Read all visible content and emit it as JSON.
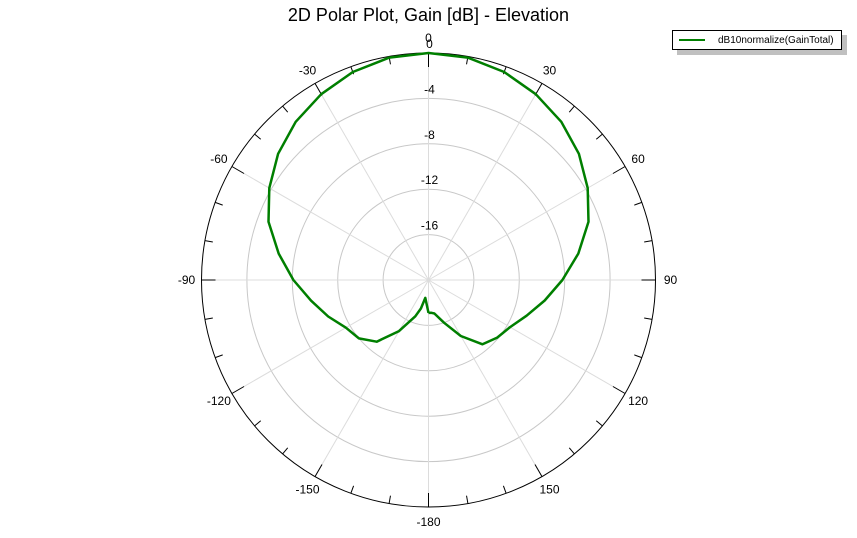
{
  "title": "2D Polar Plot, Gain [dB] - Elevation",
  "legend": {
    "entries": [
      {
        "label": "dB10normalize(GainTotal)",
        "color": "#007f00"
      }
    ]
  },
  "colors": {
    "trace": "#007f00",
    "grid": "#c8c8c8",
    "axis": "#000000"
  },
  "chart_data": {
    "type": "polar-line",
    "title": "2D Polar Plot, Gain [dB] - Elevation",
    "angle_unit": "deg",
    "angle_ticks": [
      0,
      30,
      60,
      90,
      120,
      150,
      -180,
      -150,
      -120,
      -90,
      -60,
      -30
    ],
    "radial_ticks": [
      0,
      -4,
      -8,
      -12,
      -16
    ],
    "rlim": [
      -20,
      0
    ],
    "grid": true,
    "legend_position": "top-right",
    "series": [
      {
        "name": "dB10normalize(GainTotal)",
        "theta": [
          -180,
          -170,
          -165,
          -160,
          -150,
          -140,
          -130,
          -120,
          -110,
          -100,
          -90,
          -80,
          -70,
          -60,
          -50,
          -40,
          -30,
          -20,
          -10,
          0,
          10,
          20,
          30,
          40,
          50,
          60,
          70,
          80,
          90,
          100,
          110,
          120,
          130,
          140,
          150,
          160,
          170,
          175,
          180
        ],
        "values": [
          -17.1,
          -18.4,
          -17.4,
          -16.6,
          -14.8,
          -12.9,
          -12.0,
          -11.6,
          -10.6,
          -9.5,
          -8.1,
          -6.6,
          -5.0,
          -3.8,
          -2.7,
          -1.8,
          -1.1,
          -0.5,
          -0.1,
          0.0,
          -0.1,
          -0.5,
          -1.1,
          -1.8,
          -2.7,
          -3.8,
          -5.0,
          -6.6,
          -8.2,
          -9.6,
          -10.8,
          -11.7,
          -12.1,
          -12.6,
          -14.3,
          -16.0,
          -17.0,
          -17.1,
          -17.1
        ]
      }
    ]
  }
}
